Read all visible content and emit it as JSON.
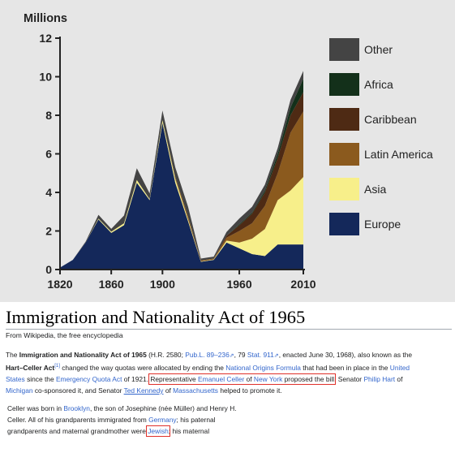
{
  "chart_data": {
    "type": "area",
    "stacked": true,
    "title": "Millions",
    "x": [
      1820,
      1830,
      1840,
      1850,
      1860,
      1870,
      1880,
      1890,
      1900,
      1910,
      1920,
      1930,
      1940,
      1950,
      1960,
      1970,
      1980,
      1990,
      2000,
      2010
    ],
    "x_ticks": [
      "1820",
      "1860",
      "1900",
      "1960",
      "2010"
    ],
    "y_ticks": [
      "0",
      "2",
      "4",
      "6",
      "8",
      "10",
      "12"
    ],
    "xlim": [
      1820,
      2010
    ],
    "ylim": [
      0,
      12
    ],
    "legend_position": "right",
    "series": [
      {
        "name": "Europe",
        "color": "#14285a",
        "values": [
          0.1,
          0.5,
          1.4,
          2.6,
          1.9,
          2.3,
          4.5,
          3.6,
          7.6,
          4.5,
          2.5,
          0.4,
          0.5,
          1.4,
          1.1,
          0.8,
          0.7,
          1.3,
          1.3,
          1.3
        ]
      },
      {
        "name": "Asia",
        "color": "#f7ef8a",
        "values": [
          0,
          0,
          0,
          0.04,
          0.06,
          0.1,
          0.15,
          0.05,
          0.15,
          0.2,
          0.1,
          0.02,
          0.02,
          0.1,
          0.3,
          0.8,
          1.4,
          2.3,
          2.8,
          3.5
        ]
      },
      {
        "name": "Latin America",
        "color": "#8b5a1e",
        "values": [
          0,
          0,
          0,
          0,
          0,
          0,
          0,
          0,
          0,
          0.1,
          0.15,
          0.05,
          0.05,
          0.15,
          0.6,
          0.8,
          1.2,
          1.4,
          3.0,
          3.4
        ]
      },
      {
        "name": "Caribbean",
        "color": "#4e2a14",
        "values": [
          0,
          0,
          0,
          0,
          0,
          0,
          0,
          0,
          0,
          0,
          0,
          0,
          0,
          0.1,
          0.3,
          0.5,
          0.7,
          0.8,
          0.9,
          1.0
        ]
      },
      {
        "name": "Africa",
        "color": "#13301a",
        "values": [
          0,
          0,
          0,
          0,
          0,
          0,
          0,
          0,
          0,
          0,
          0,
          0,
          0,
          0,
          0.05,
          0.05,
          0.1,
          0.2,
          0.4,
          0.7
        ]
      },
      {
        "name": "Other",
        "color": "#444444",
        "values": [
          0,
          0,
          0.05,
          0.2,
          0.15,
          0.4,
          0.6,
          0.3,
          0.5,
          0.5,
          0.5,
          0.1,
          0.1,
          0.2,
          0.3,
          0.3,
          0.3,
          0.3,
          0.4,
          0.4
        ]
      }
    ]
  },
  "article": {
    "title": "Immigration and Nationality Act of 1965",
    "tagline": "From Wikipedia, the free encyclopedia",
    "lead": {
      "t1": "The ",
      "b1": "Immigration and Nationality Act of 1965",
      "t2": " (H.R. 2580; ",
      "l_publ": "Pub.L. 89–236",
      "ext1": "⇗",
      "t3": ", 79 ",
      "l_stat": "Stat. 911",
      "ext2": "⇗",
      "t4": ", enacted June 30, 1968), also known as the",
      "b2": "Hart–Celler Act",
      "ref": "[1]",
      "t5": " changed the way quotas were allocated by ending the ",
      "l_nof": "National Origins Formula",
      "t6": " that had been in place in the ",
      "l_united": "United",
      "l_states": "States",
      "t7": " since the ",
      "l_eqa": "Emergency Quota Act",
      "t8": " of 1921. ",
      "h1": "Representative ",
      "l_celler": "Emanuel Celler",
      "h2": " of ",
      "l_ny": "New York",
      "h3": " proposed the bill",
      "t9": ". Senator ",
      "l_philip": "Philip Hart",
      "t10": " of",
      "l_michigan": "Michigan",
      "t11": " co-sponsored it, and Senator ",
      "l_ted": "Ted Kennedy",
      "t12": " of ",
      "l_mass": "Massachusetts",
      "t13": " helped to promote it."
    },
    "bio": {
      "p1": "Celler was born in ",
      "l_brooklyn": "Brooklyn",
      "p2": ", the son of Josephine (née Müller) and Henry H.",
      "p3": "Celler. All of his grandparents immigrated from ",
      "l_germany": "Germany",
      "p4": "; his paternal",
      "p5": "grandparents and maternal grandmother were ",
      "l_jewish": "Jewish",
      "p6": "; his maternal"
    }
  }
}
